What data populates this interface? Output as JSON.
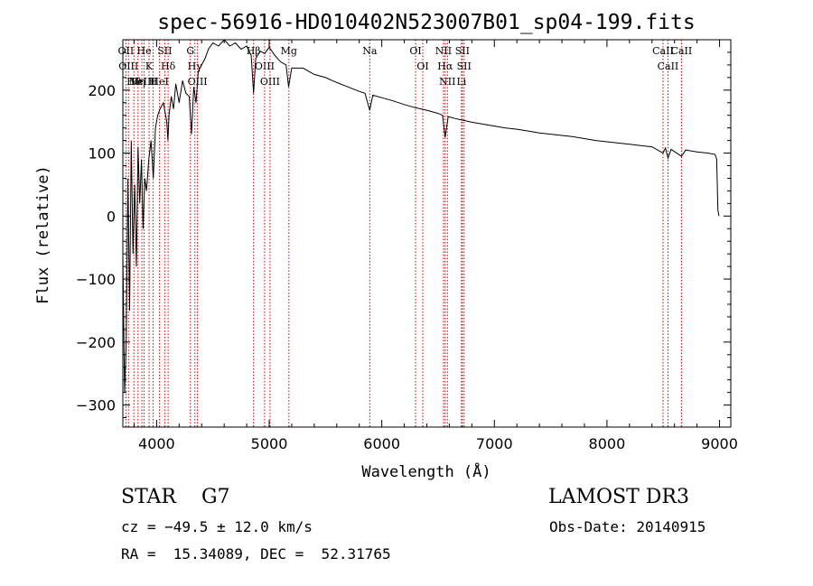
{
  "chart_data": {
    "type": "line",
    "title": "spec-56916-HD010402N523007B01_sp04-199.fits",
    "xlabel": "Wavelength (Å)",
    "ylabel": "Flux (relative)",
    "xlim": [
      3700,
      9100
    ],
    "ylim": [
      -335,
      280
    ],
    "x_ticks": [
      4000,
      5000,
      6000,
      7000,
      8000,
      9000
    ],
    "x_tick_labels": [
      "4000",
      "5000",
      "6000",
      "7000",
      "8000",
      "9000"
    ],
    "y_ticks": [
      -300,
      -200,
      -100,
      0,
      100,
      200
    ],
    "y_tick_labels": [
      "−300",
      "−200",
      "−100",
      "0",
      "100",
      "200"
    ],
    "series": [
      {
        "name": "flux",
        "color": "#000000",
        "points": [
          [
            3700,
            -60
          ],
          [
            3715,
            -280
          ],
          [
            3730,
            -200
          ],
          [
            3745,
            60
          ],
          [
            3760,
            -150
          ],
          [
            3775,
            120
          ],
          [
            3790,
            -60
          ],
          [
            3805,
            50
          ],
          [
            3820,
            -80
          ],
          [
            3835,
            110
          ],
          [
            3850,
            20
          ],
          [
            3865,
            90
          ],
          [
            3880,
            -20
          ],
          [
            3895,
            60
          ],
          [
            3910,
            40
          ],
          [
            3930,
            90
          ],
          [
            3950,
            120
          ],
          [
            3970,
            60
          ],
          [
            3990,
            140
          ],
          [
            4010,
            160
          ],
          [
            4030,
            170
          ],
          [
            4060,
            180
          ],
          [
            4090,
            150
          ],
          [
            4100,
            120
          ],
          [
            4110,
            160
          ],
          [
            4130,
            190
          ],
          [
            4150,
            170
          ],
          [
            4170,
            210
          ],
          [
            4200,
            180
          ],
          [
            4230,
            215
          ],
          [
            4260,
            195
          ],
          [
            4290,
            190
          ],
          [
            4310,
            130
          ],
          [
            4330,
            205
          ],
          [
            4350,
            180
          ],
          [
            4370,
            230
          ],
          [
            4400,
            240
          ],
          [
            4430,
            250
          ],
          [
            4460,
            265
          ],
          [
            4500,
            275
          ],
          [
            4550,
            270
          ],
          [
            4600,
            280
          ],
          [
            4650,
            270
          ],
          [
            4700,
            275
          ],
          [
            4750,
            265
          ],
          [
            4800,
            270
          ],
          [
            4840,
            255
          ],
          [
            4861,
            195
          ],
          [
            4880,
            250
          ],
          [
            4920,
            262
          ],
          [
            4960,
            258
          ],
          [
            5000,
            268
          ],
          [
            5050,
            255
          ],
          [
            5100,
            245
          ],
          [
            5150,
            240
          ],
          [
            5172,
            205
          ],
          [
            5200,
            235
          ],
          [
            5300,
            235
          ],
          [
            5400,
            225
          ],
          [
            5500,
            220
          ],
          [
            5600,
            212
          ],
          [
            5700,
            205
          ],
          [
            5800,
            198
          ],
          [
            5850,
            195
          ],
          [
            5893,
            168
          ],
          [
            5920,
            192
          ],
          [
            6000,
            188
          ],
          [
            6100,
            183
          ],
          [
            6200,
            177
          ],
          [
            6300,
            172
          ],
          [
            6400,
            168
          ],
          [
            6500,
            163
          ],
          [
            6540,
            160
          ],
          [
            6563,
            125
          ],
          [
            6590,
            158
          ],
          [
            6650,
            155
          ],
          [
            6700,
            153
          ],
          [
            6800,
            149
          ],
          [
            6900,
            146
          ],
          [
            7000,
            143
          ],
          [
            7100,
            140
          ],
          [
            7200,
            138
          ],
          [
            7300,
            135
          ],
          [
            7400,
            132
          ],
          [
            7500,
            130
          ],
          [
            7600,
            128
          ],
          [
            7700,
            126
          ],
          [
            7800,
            123
          ],
          [
            7900,
            120
          ],
          [
            8000,
            118
          ],
          [
            8100,
            116
          ],
          [
            8200,
            114
          ],
          [
            8300,
            112
          ],
          [
            8400,
            110
          ],
          [
            8498,
            100
          ],
          [
            8520,
            108
          ],
          [
            8542,
            92
          ],
          [
            8570,
            106
          ],
          [
            8662,
            95
          ],
          [
            8700,
            105
          ],
          [
            8800,
            102
          ],
          [
            8900,
            100
          ],
          [
            8960,
            98
          ],
          [
            8975,
            90
          ],
          [
            8985,
            10
          ],
          [
            8995,
            0
          ]
        ]
      }
    ],
    "line_marker_color": "#cc0000",
    "lines": [
      {
        "wl": 3727,
        "label": "OII"
      },
      {
        "wl": 3750,
        "label": "OIII"
      },
      {
        "wl": 3798,
        "label": "Hθ"
      },
      {
        "wl": 3835,
        "label": "Hη"
      },
      {
        "wl": 3869,
        "label": "NeIII"
      },
      {
        "wl": 3889,
        "label": "He"
      },
      {
        "wl": 3933,
        "label": "K"
      },
      {
        "wl": 3968,
        "label": "H"
      },
      {
        "wl": 4026,
        "label": "HeI"
      },
      {
        "wl": 4072,
        "label": "SII"
      },
      {
        "wl": 4102,
        "label": "Hδ"
      },
      {
        "wl": 4300,
        "label": "G"
      },
      {
        "wl": 4340,
        "label": "Hγ"
      },
      {
        "wl": 4363,
        "label": "OIII"
      },
      {
        "wl": 4861,
        "label": "Hβ"
      },
      {
        "wl": 4959,
        "label": "OIII"
      },
      {
        "wl": 5007,
        "label": "OIII"
      },
      {
        "wl": 5175,
        "label": "Mg"
      },
      {
        "wl": 5893,
        "label": "Na"
      },
      {
        "wl": 6300,
        "label": "OI"
      },
      {
        "wl": 6364,
        "label": "OI"
      },
      {
        "wl": 6548,
        "label": "NII"
      },
      {
        "wl": 6563,
        "label": "Hα"
      },
      {
        "wl": 6583,
        "label": "NII"
      },
      {
        "wl": 6708,
        "label": "Li"
      },
      {
        "wl": 6716,
        "label": "SII"
      },
      {
        "wl": 6731,
        "label": "SII"
      },
      {
        "wl": 8498,
        "label": "CaII"
      },
      {
        "wl": 8542,
        "label": "CaII"
      },
      {
        "wl": 8662,
        "label": "CaII"
      }
    ]
  },
  "info": {
    "object_class": "STAR    G7",
    "survey": "LAMOST DR3",
    "redshift_text": "cz = −49.5 ± 12.0 km/s",
    "obs_date": "Obs-Date: 20140915",
    "coords": "RA =  15.34089, DEC =  52.31765"
  }
}
